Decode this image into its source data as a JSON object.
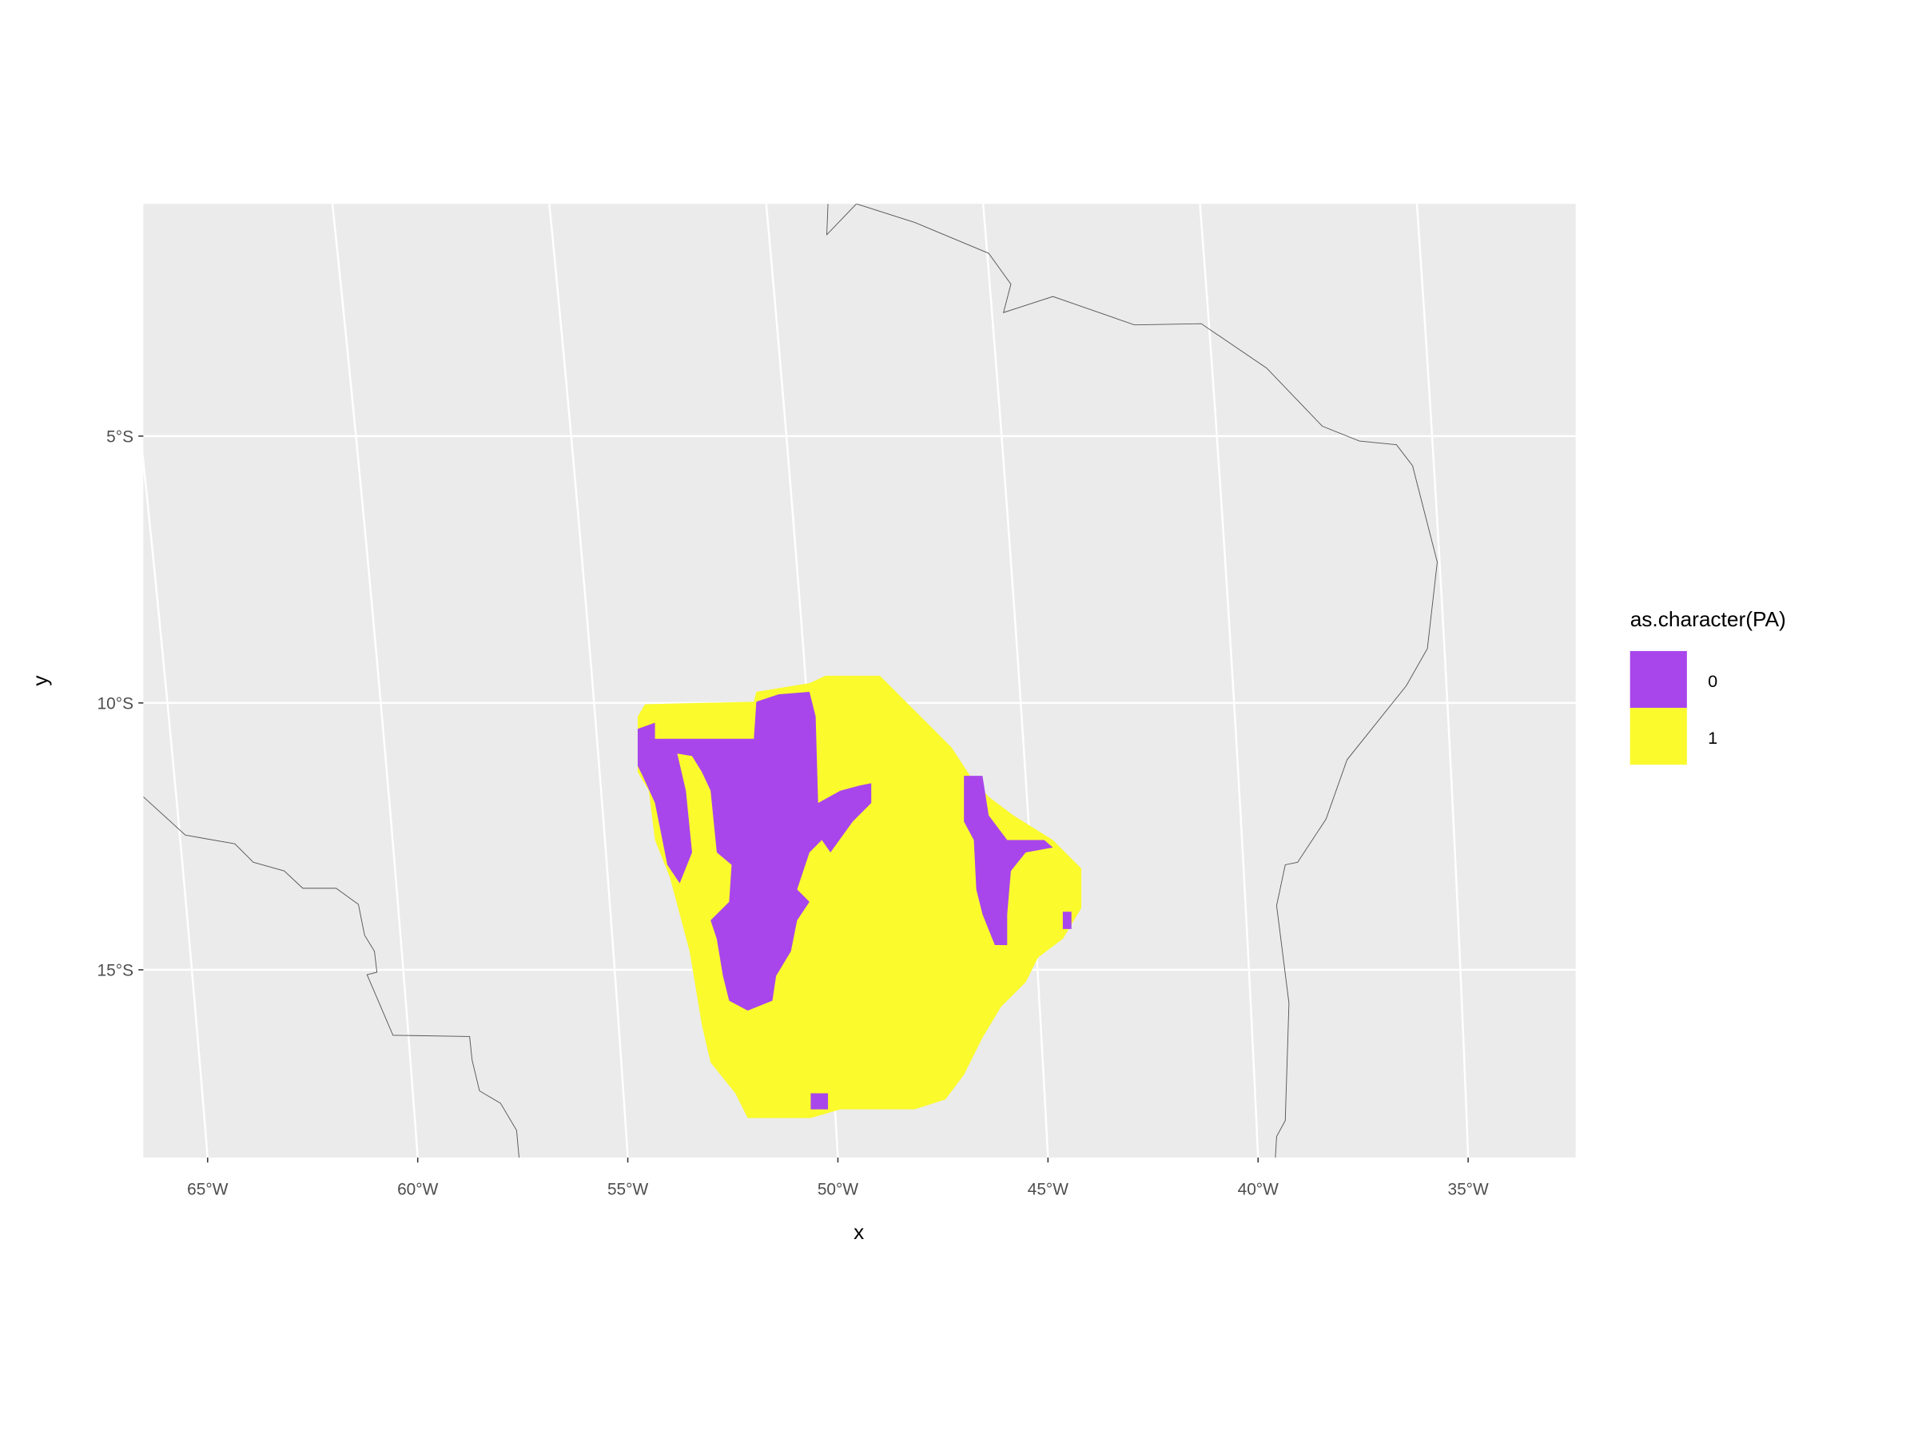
{
  "map": {
    "xlabel": "x",
    "ylabel": "y",
    "xticks": [
      {
        "value": -65,
        "label": "65°W"
      },
      {
        "value": -60,
        "label": "60°W"
      },
      {
        "value": -55,
        "label": "55°W"
      },
      {
        "value": -50,
        "label": "50°W"
      },
      {
        "value": -45,
        "label": "45°W"
      },
      {
        "value": -40,
        "label": "40°W"
      },
      {
        "value": -35,
        "label": "35°W"
      }
    ],
    "yticks": [
      {
        "value": -5,
        "label": "5°S"
      },
      {
        "value": -10,
        "label": "10°S"
      },
      {
        "value": -15,
        "label": "15°S"
      }
    ],
    "grid": true,
    "legend": {
      "title": "as.character(PA)",
      "items": [
        {
          "label": "0",
          "color": "#a846eb"
        },
        {
          "label": "1",
          "color": "#fafa2d"
        }
      ]
    }
  }
}
